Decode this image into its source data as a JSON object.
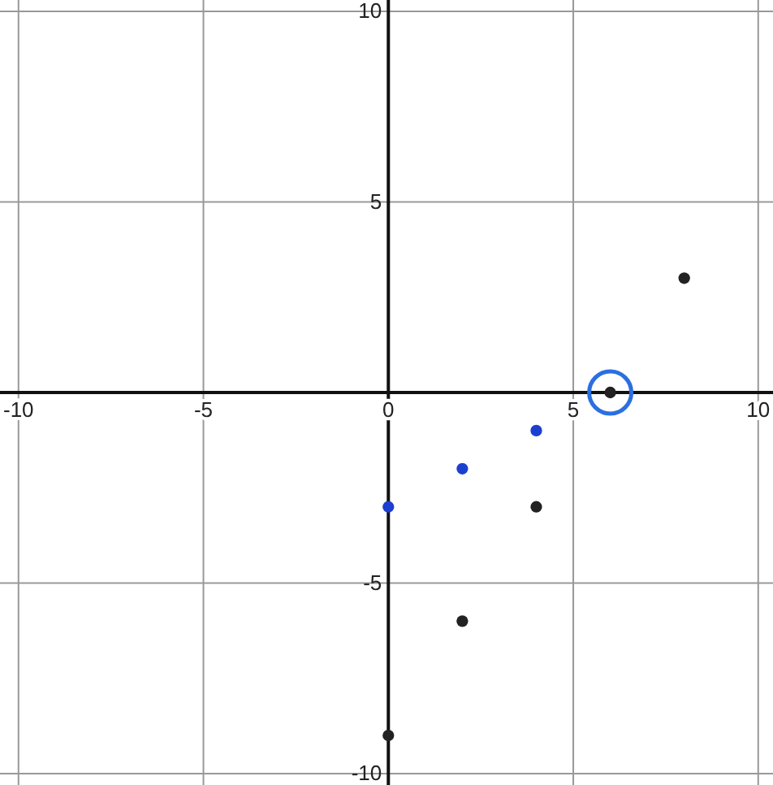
{
  "chart_data": {
    "type": "scatter",
    "xlim": [
      -10.5,
      10.4
    ],
    "ylim": [
      -10.3,
      10.3
    ],
    "xticks": [
      -10,
      -5,
      0,
      5,
      10
    ],
    "yticks": [
      -10,
      -5,
      5,
      10
    ],
    "grid": true,
    "marker": "circle",
    "series": [
      {
        "color": "#1c3fd0",
        "x": [
          0,
          2,
          4
        ],
        "values": [
          -3,
          -2,
          -1
        ]
      },
      {
        "color": "#222222",
        "x": [
          6,
          8,
          4,
          2,
          0
        ],
        "values": [
          0,
          3,
          -3,
          -6,
          -9
        ]
      }
    ]
  }
}
